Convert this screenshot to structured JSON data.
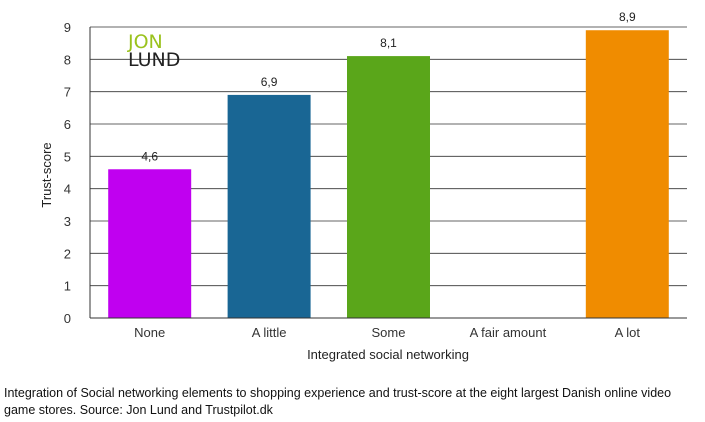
{
  "chart_data": {
    "type": "bar",
    "categories": [
      "None",
      "A little",
      "Some",
      "A fair amount",
      "A lot"
    ],
    "values": [
      4.6,
      6.9,
      8.1,
      null,
      8.9
    ],
    "data_labels": [
      "4,6",
      "6,9",
      "8,1",
      "",
      "8,9"
    ],
    "colors": [
      "#c000f0",
      "#196694",
      "#5aa61a",
      null,
      "#f08c00"
    ],
    "xlabel": "Integrated social networking",
    "ylabel": "Trust-score",
    "ylim": [
      0,
      9
    ],
    "yticks": [
      "0",
      "1",
      "2",
      "3",
      "4",
      "5",
      "6",
      "7",
      "8",
      "9"
    ],
    "grid": true,
    "legend": "none"
  },
  "logo": {
    "line1": "JON",
    "line2": "LUND",
    "color1": "#9ac21d",
    "color2": "#222222"
  },
  "caption": "Integration of Social networking elements to shopping experience and trust-score at the eight largest Danish online video game stores. Source: Jon Lund and Trustpilot.dk"
}
